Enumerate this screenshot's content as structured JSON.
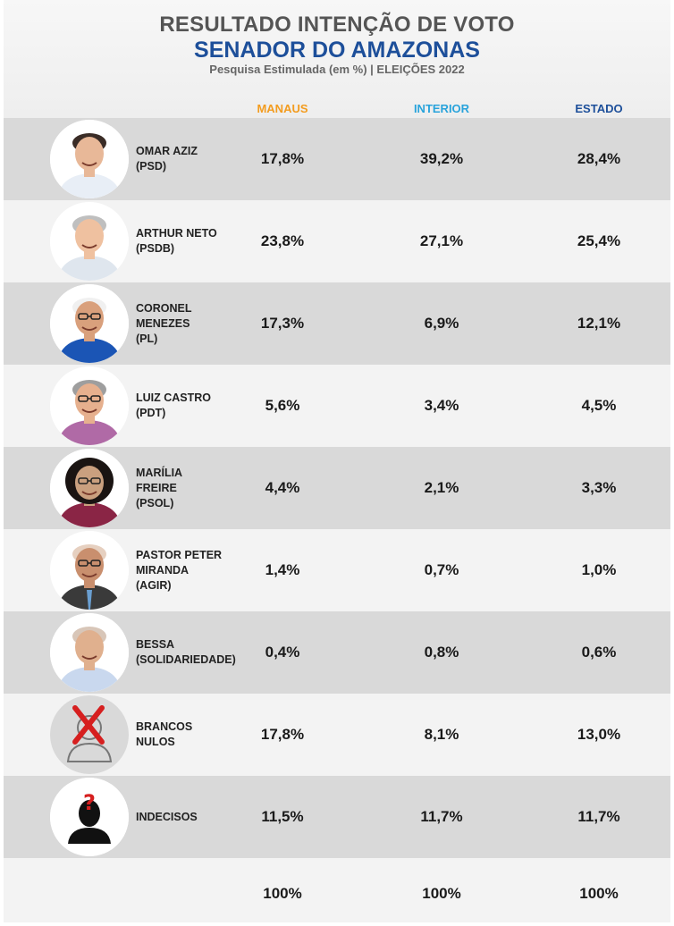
{
  "header": {
    "title": "RESULTADO INTENÇÃO DE VOTO",
    "subtitle": "SENADOR DO AMAZONAS",
    "caption": "Pesquisa Estimulada (em %) | ELEIÇÕES 2022"
  },
  "columns": [
    {
      "label": "MANAUS",
      "color": "#f39c1f"
    },
    {
      "label": "INTERIOR",
      "color": "#29a3db"
    },
    {
      "label": "ESTADO",
      "color": "#1d4f9a"
    }
  ],
  "rows": [
    {
      "name_lines": [
        "OMAR AZIZ",
        "(PSD)"
      ],
      "manaus": "17,8%",
      "interior": "39,2%",
      "estado": "28,4%"
    },
    {
      "name_lines": [
        "ARTHUR NETO",
        "(PSDB)"
      ],
      "manaus": "23,8%",
      "interior": "27,1%",
      "estado": "25,4%"
    },
    {
      "name_lines": [
        "CORONEL",
        "MENEZES",
        "(PL)"
      ],
      "manaus": "17,3%",
      "interior": "6,9%",
      "estado": "12,1%"
    },
    {
      "name_lines": [
        "LUIZ CASTRO",
        "(PDT)"
      ],
      "manaus": "5,6%",
      "interior": "3,4%",
      "estado": "4,5%"
    },
    {
      "name_lines": [
        "MARÍLIA",
        "FREIRE",
        "(PSOL)"
      ],
      "manaus": "4,4%",
      "interior": "2,1%",
      "estado": "3,3%"
    },
    {
      "name_lines": [
        "PASTOR PETER",
        "MIRANDA",
        "(AGIR)"
      ],
      "manaus": "1,4%",
      "interior": "0,7%",
      "estado": "1,0%"
    },
    {
      "name_lines": [
        "BESSA",
        "(SOLIDARIEDADE)"
      ],
      "manaus": "0,4%",
      "interior": "0,8%",
      "estado": "0,6%"
    },
    {
      "name_lines": [
        "BRANCOS",
        "NULOS"
      ],
      "manaus": "17,8%",
      "interior": "8,1%",
      "estado": "13,0%"
    },
    {
      "name_lines": [
        "INDECISOS"
      ],
      "manaus": "11,5%",
      "interior": "11,7%",
      "estado": "11,7%"
    }
  ],
  "totals": {
    "manaus": "100%",
    "interior": "100%",
    "estado": "100%"
  },
  "chart_data": {
    "type": "table",
    "title": "RESULTADO INTENÇÃO DE VOTO",
    "subtitle": "SENADOR DO AMAZONAS",
    "columns": [
      "MANAUS",
      "INTERIOR",
      "ESTADO"
    ],
    "categories": [
      "OMAR AZIZ (PSD)",
      "ARTHUR NETO (PSDB)",
      "CORONEL MENEZES (PL)",
      "LUIZ CASTRO (PDT)",
      "MARÍLIA FREIRE (PSOL)",
      "PASTOR PETER MIRANDA (AGIR)",
      "BESSA (SOLIDARIEDADE)",
      "BRANCOS NULOS",
      "INDECISOS"
    ],
    "series": [
      {
        "name": "MANAUS",
        "values": [
          17.8,
          23.8,
          17.3,
          5.6,
          4.4,
          1.4,
          0.4,
          17.8,
          11.5
        ]
      },
      {
        "name": "INTERIOR",
        "values": [
          39.2,
          27.1,
          6.9,
          3.4,
          2.1,
          0.7,
          0.8,
          8.1,
          11.7
        ]
      },
      {
        "name": "ESTADO",
        "values": [
          28.4,
          25.4,
          12.1,
          4.5,
          3.3,
          1.0,
          0.6,
          13.0,
          11.7
        ]
      }
    ],
    "totals": [
      100,
      100,
      100
    ]
  }
}
